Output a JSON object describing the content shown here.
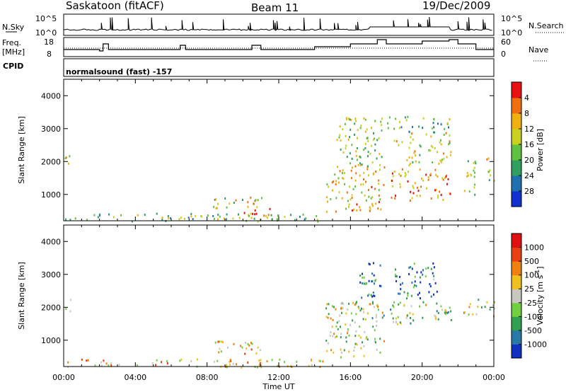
{
  "header": {
    "station": "Saskatoon (fitACF)",
    "beam": "Beam 11",
    "date": "19/Dec/2009"
  },
  "strip": {
    "nsky_label": "N.Sky",
    "nsky_tick_hi": "10^5",
    "nsky_tick_lo": "10^0",
    "nsearch_label": "N.Search",
    "nsearch_tick_hi": "10^5",
    "nsearch_tick_lo": "10^0",
    "freq_label": "Freq.",
    "freq_unit": "[MHz]",
    "freq_tick_hi": "18",
    "freq_tick_lo": "8",
    "nave_label": "Nave",
    "nave_tick_hi": "60",
    "nave_tick_lo": "0",
    "cpid_label": "CPID",
    "cpid_text": "normalsound (fast) -157"
  },
  "chart_data": [
    {
      "type": "heatmap",
      "panel": "power",
      "ylabel": "Slant Range [km]",
      "yticks": [
        "1000",
        "2000",
        "3000",
        "4000"
      ],
      "ylim": [
        200,
        4500
      ],
      "xlim_hours": [
        0,
        24
      ],
      "colorbar": {
        "label": "Power [dB]",
        "ticks": [
          "4",
          "8",
          "12",
          "16",
          "20",
          "24",
          "28"
        ],
        "colors": [
          "#1030d0",
          "#2070b0",
          "#30a060",
          "#60c040",
          "#c8d020",
          "#f0b010",
          "#f07010",
          "#e81010"
        ]
      },
      "regions": [
        {
          "t0": 0.0,
          "t1": 0.35,
          "r0": 1900,
          "r1": 2300,
          "level": 0.55
        },
        {
          "t0": 0.0,
          "t1": 14.5,
          "r0": 200,
          "r1": 450,
          "level": 0.45
        },
        {
          "t0": 8.3,
          "t1": 11.2,
          "r0": 600,
          "r1": 1000,
          "level": 0.55
        },
        {
          "t0": 10.0,
          "t1": 11.6,
          "r0": 300,
          "r1": 600,
          "level": 0.85
        },
        {
          "t0": 14.6,
          "t1": 17.9,
          "r0": 500,
          "r1": 1900,
          "level": 0.65
        },
        {
          "t0": 15.2,
          "t1": 17.8,
          "r0": 1800,
          "r1": 3400,
          "level": 0.5
        },
        {
          "t0": 18.2,
          "t1": 21.6,
          "r0": 800,
          "r1": 1800,
          "level": 0.75
        },
        {
          "t0": 18.4,
          "t1": 21.6,
          "r0": 1900,
          "r1": 2900,
          "level": 0.6
        },
        {
          "t0": 18.0,
          "t1": 21.6,
          "r0": 2900,
          "r1": 3400,
          "level": 0.4
        },
        {
          "t0": 22.3,
          "t1": 23.0,
          "r0": 1000,
          "r1": 2200,
          "level": 0.5
        },
        {
          "t0": 23.5,
          "t1": 24.0,
          "r0": 1200,
          "r1": 2300,
          "level": 0.55
        }
      ]
    },
    {
      "type": "heatmap",
      "panel": "velocity",
      "ylabel": "Slant Range [km]",
      "yticks": [
        "1000",
        "2000",
        "3000",
        "4000"
      ],
      "ylim": [
        200,
        4500
      ],
      "xlim_hours": [
        0,
        24
      ],
      "colorbar": {
        "label": "Velocity [m s",
        "label_sup": "-1",
        "label_close": "]",
        "ticks": [
          "1000",
          "500",
          "100",
          "25",
          "-25",
          "-100",
          "-500",
          "-1000"
        ],
        "colors": [
          "#1030c0",
          "#2878a8",
          "#30a050",
          "#70d040",
          "#c8c8c0",
          "#f0c020",
          "#f08010",
          "#e84010",
          "#e01010"
        ]
      },
      "regions": [
        {
          "t0": 0.0,
          "t1": 0.35,
          "r0": 1900,
          "r1": 2300,
          "level": 0.45
        },
        {
          "t0": 0.0,
          "t1": 14.5,
          "r0": 200,
          "r1": 450,
          "level": 0.6
        },
        {
          "t0": 8.3,
          "t1": 11.2,
          "r0": 600,
          "r1": 1000,
          "level": 0.62
        },
        {
          "t0": 14.6,
          "t1": 17.9,
          "r0": 500,
          "r1": 2200,
          "level": 0.45
        },
        {
          "t0": 16.5,
          "t1": 17.8,
          "r0": 2300,
          "r1": 3400,
          "level": 0.2
        },
        {
          "t0": 18.2,
          "t1": 21.6,
          "r0": 1500,
          "r1": 2200,
          "level": 0.45
        },
        {
          "t0": 18.4,
          "t1": 20.8,
          "r0": 2300,
          "r1": 3400,
          "level": 0.2
        },
        {
          "t0": 22.3,
          "t1": 24.0,
          "r0": 1700,
          "r1": 2300,
          "level": 0.45
        }
      ]
    }
  ],
  "xaxis": {
    "label": "Time UT",
    "ticks": [
      "00:00",
      "04:00",
      "08:00",
      "12:00",
      "16:00",
      "20:00",
      "00:00"
    ]
  }
}
